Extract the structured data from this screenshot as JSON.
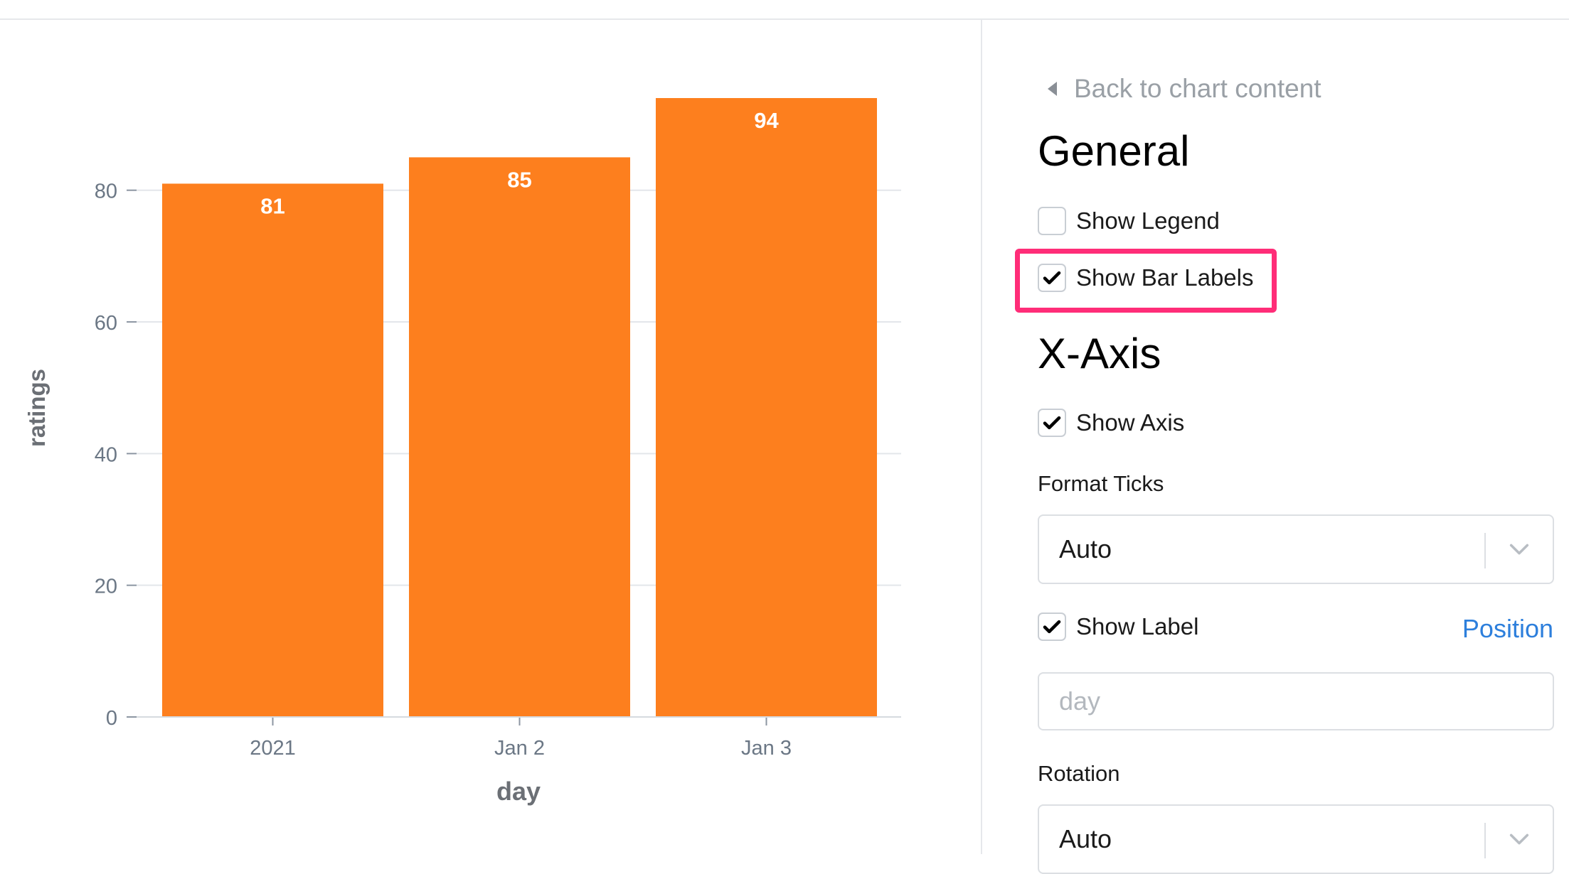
{
  "chart_data": {
    "type": "bar",
    "categories": [
      "2021",
      "Jan 2",
      "Jan 3"
    ],
    "values": [
      81,
      85,
      94
    ],
    "data_labels": [
      "81",
      "85",
      "94"
    ],
    "xlabel": "day",
    "ylabel": "ratings",
    "yticks": [
      "0",
      "20",
      "40",
      "60",
      "80"
    ],
    "ylim": [
      0,
      94
    ],
    "grid": true,
    "bar_color": "#fd7f1e"
  },
  "panel": {
    "back_label": "Back to chart content",
    "general_heading": "General",
    "show_legend": {
      "label": "Show Legend",
      "checked": false
    },
    "show_bar_labels": {
      "label": "Show Bar Labels",
      "checked": true
    },
    "xaxis_heading": "X-Axis",
    "show_axis": {
      "label": "Show Axis",
      "checked": true
    },
    "format_ticks": {
      "label": "Format Ticks",
      "value": "Auto"
    },
    "show_label": {
      "label": "Show Label",
      "checked": true
    },
    "position_link": "Position",
    "axis_label_placeholder": "day",
    "rotation": {
      "label": "Rotation",
      "value": "Auto"
    },
    "highlight_color": "#ff2d78",
    "link_color": "#2d7fdc"
  }
}
